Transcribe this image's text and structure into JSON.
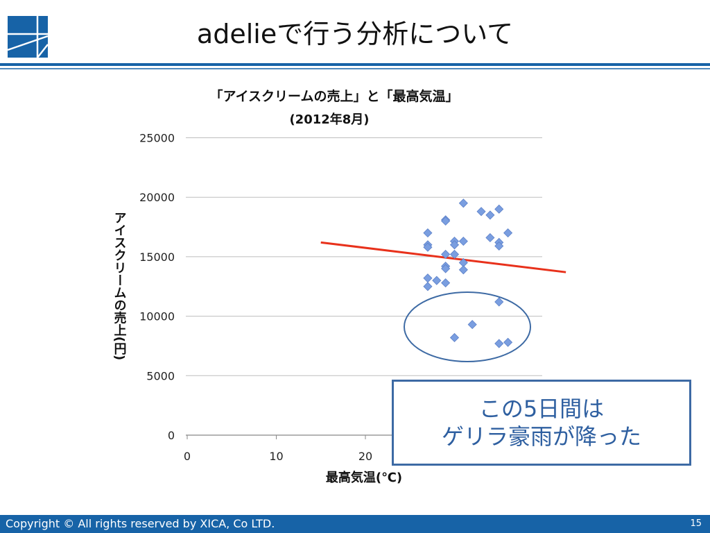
{
  "slide": {
    "title": "adelieで行う分析について",
    "page_number": "15"
  },
  "footer": {
    "copyright": "Copyright © All rights reserved by XICA, Co LTD."
  },
  "callout": {
    "line1": "この5日間は",
    "line2": "ゲリラ豪雨が降った"
  },
  "colors": {
    "accent": "#1763a7",
    "marker": "#7a9ee0",
    "trendline": "#e8311b",
    "ellipse": "#3d6aa4"
  },
  "chart_data": {
    "type": "scatter",
    "title": "「アイスクリームの売上」と「最高気温」",
    "subtitle": "(2012年8月)",
    "xlabel": "最高気温(℃)",
    "ylabel": "アイスクリームの売上(円)",
    "xlim": [
      0,
      40
    ],
    "ylim": [
      0,
      25000
    ],
    "x_ticks": [
      0,
      10,
      20
    ],
    "y_ticks": [
      0,
      5000,
      10000,
      15000,
      20000,
      25000
    ],
    "grid": true,
    "points": [
      {
        "x": 27,
        "y": 17000
      },
      {
        "x": 27,
        "y": 16000
      },
      {
        "x": 27,
        "y": 15800
      },
      {
        "x": 27,
        "y": 13200
      },
      {
        "x": 27,
        "y": 12500
      },
      {
        "x": 28,
        "y": 13000
      },
      {
        "x": 29,
        "y": 18100
      },
      {
        "x": 29,
        "y": 18000
      },
      {
        "x": 29,
        "y": 15200
      },
      {
        "x": 29,
        "y": 14200
      },
      {
        "x": 29,
        "y": 14000
      },
      {
        "x": 29,
        "y": 12800
      },
      {
        "x": 30,
        "y": 16300
      },
      {
        "x": 30,
        "y": 16000
      },
      {
        "x": 30,
        "y": 15200
      },
      {
        "x": 30,
        "y": 8200
      },
      {
        "x": 31,
        "y": 19500
      },
      {
        "x": 31,
        "y": 16300
      },
      {
        "x": 31,
        "y": 14500
      },
      {
        "x": 31,
        "y": 13900
      },
      {
        "x": 32,
        "y": 9300
      },
      {
        "x": 33,
        "y": 18800
      },
      {
        "x": 34,
        "y": 18500
      },
      {
        "x": 34,
        "y": 16600
      },
      {
        "x": 35,
        "y": 19000
      },
      {
        "x": 35,
        "y": 16200
      },
      {
        "x": 35,
        "y": 15900
      },
      {
        "x": 35,
        "y": 11200
      },
      {
        "x": 35,
        "y": 7700
      },
      {
        "x": 36,
        "y": 17000
      },
      {
        "x": 36,
        "y": 7800
      }
    ],
    "trendline": {
      "x": [
        15,
        42.5
      ],
      "y": [
        16200,
        13700
      ]
    }
  }
}
